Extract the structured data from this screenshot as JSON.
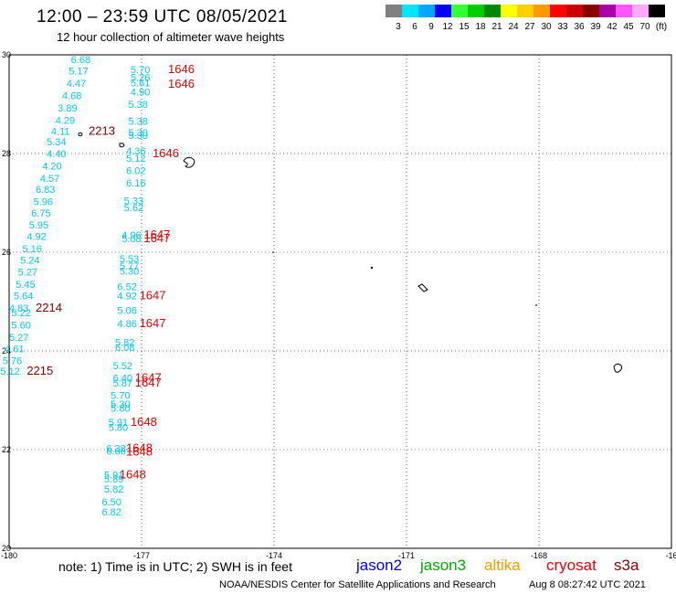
{
  "header": {
    "title": "12:00 – 23:59 UTC 08/05/2021",
    "subtitle": "12 hour collection of altimeter wave heights"
  },
  "color_scale": {
    "unit": "(ft)",
    "levels": [
      {
        "label": "3",
        "color": "#808080"
      },
      {
        "label": "6",
        "color": "#00e5ff"
      },
      {
        "label": "9",
        "color": "#00a8ff"
      },
      {
        "label": "12",
        "color": "#0000ff"
      },
      {
        "label": "15",
        "color": "#33ff33"
      },
      {
        "label": "18",
        "color": "#00cc00"
      },
      {
        "label": "21",
        "color": "#008800"
      },
      {
        "label": "24",
        "color": "#ffff00"
      },
      {
        "label": "27",
        "color": "#ffd000"
      },
      {
        "label": "30",
        "color": "#ff9900"
      },
      {
        "label": "33",
        "color": "#ff0000"
      },
      {
        "label": "36",
        "color": "#cc0000"
      },
      {
        "label": "39",
        "color": "#880000"
      },
      {
        "label": "42",
        "color": "#aa00aa"
      },
      {
        "label": "45",
        "color": "#ff55ff"
      },
      {
        "label": "70",
        "color": "#ffaaff"
      },
      {
        "label": "",
        "color": "#000000"
      }
    ]
  },
  "map": {
    "lon_labels": [
      "-180",
      "-177",
      "-174",
      "-171",
      "-168",
      "-16"
    ],
    "lat_labels": [
      "30",
      "28",
      "26",
      "24",
      "22",
      "20"
    ],
    "colors": {
      "wave": "#00c8f0",
      "time_jason3": "#e00000",
      "time_other": "#800000"
    },
    "wave_labels": [
      {
        "t": "6.68",
        "lon": -178.6,
        "lat": 29.83
      },
      {
        "t": "5.17",
        "lon": -178.65,
        "lat": 29.6
      },
      {
        "t": "4.47",
        "lon": -178.7,
        "lat": 29.35
      },
      {
        "t": "4.68",
        "lon": -178.8,
        "lat": 29.1
      },
      {
        "t": "3.89",
        "lon": -178.9,
        "lat": 28.85
      },
      {
        "t": "4.29",
        "lon": -178.95,
        "lat": 28.6
      },
      {
        "t": "4.11",
        "lon": -179.05,
        "lat": 28.38
      },
      {
        "t": "5.34",
        "lon": -179.15,
        "lat": 28.17
      },
      {
        "t": "4.40",
        "lon": -179.15,
        "lat": 27.93
      },
      {
        "t": "4.20",
        "lon": -179.25,
        "lat": 27.68
      },
      {
        "t": "4.57",
        "lon": -179.3,
        "lat": 27.43
      },
      {
        "t": "6.83",
        "lon": -179.4,
        "lat": 27.2
      },
      {
        "t": "5.96",
        "lon": -179.45,
        "lat": 26.95
      },
      {
        "t": "6.75",
        "lon": -179.5,
        "lat": 26.72
      },
      {
        "t": "5.95",
        "lon": -179.55,
        "lat": 26.48
      },
      {
        "t": "4.92",
        "lon": -179.6,
        "lat": 26.25
      },
      {
        "t": "5.16",
        "lon": -179.7,
        "lat": 26.0
      },
      {
        "t": "5.24",
        "lon": -179.75,
        "lat": 25.77
      },
      {
        "t": "5.27",
        "lon": -179.8,
        "lat": 25.53
      },
      {
        "t": "5.45",
        "lon": -179.85,
        "lat": 25.28
      },
      {
        "t": "5.64",
        "lon": -179.9,
        "lat": 25.05
      },
      {
        "t": "4.83",
        "lon": -180.0,
        "lat": 24.8
      },
      {
        "t": "5.22",
        "lon": -179.95,
        "lat": 24.7
      },
      {
        "t": "5.60",
        "lon": -179.95,
        "lat": 24.45
      },
      {
        "t": "5.27",
        "lon": -180.0,
        "lat": 24.2
      },
      {
        "t": "4.61",
        "lon": -180.1,
        "lat": 23.97
      },
      {
        "t": "5.76",
        "lon": -180.15,
        "lat": 23.73
      },
      {
        "t": "5.12",
        "lon": -180.2,
        "lat": 23.52
      },
      {
        "t": "5.70",
        "lon": -177.25,
        "lat": 29.63
      },
      {
        "t": "5.26",
        "lon": -177.25,
        "lat": 29.47
      },
      {
        "t": "5.61",
        "lon": -177.25,
        "lat": 29.36
      },
      {
        "t": "4.90",
        "lon": -177.25,
        "lat": 29.18
      },
      {
        "t": "5.38",
        "lon": -177.3,
        "lat": 28.93
      },
      {
        "t": "5.38",
        "lon": -177.3,
        "lat": 28.58
      },
      {
        "t": "5.30",
        "lon": -177.3,
        "lat": 28.35
      },
      {
        "t": "5.30",
        "lon": -177.3,
        "lat": 28.3
      },
      {
        "t": "4.36",
        "lon": -177.35,
        "lat": 27.98
      },
      {
        "t": "5.12",
        "lon": -177.35,
        "lat": 27.83
      },
      {
        "t": "6.02",
        "lon": -177.35,
        "lat": 27.58
      },
      {
        "t": "6.16",
        "lon": -177.35,
        "lat": 27.33
      },
      {
        "t": "5.33",
        "lon": -177.4,
        "lat": 26.97
      },
      {
        "t": "5.62",
        "lon": -177.4,
        "lat": 26.83
      },
      {
        "t": "4.96",
        "lon": -177.45,
        "lat": 26.28
      },
      {
        "t": "5.08",
        "lon": -177.45,
        "lat": 26.2
      },
      {
        "t": "5.53",
        "lon": -177.5,
        "lat": 25.8
      },
      {
        "t": "5.77",
        "lon": -177.5,
        "lat": 25.65
      },
      {
        "t": "5.30",
        "lon": -177.5,
        "lat": 25.55
      },
      {
        "t": "6.52",
        "lon": -177.55,
        "lat": 25.23
      },
      {
        "t": "4.92",
        "lon": -177.55,
        "lat": 25.05
      },
      {
        "t": "5.06",
        "lon": -177.55,
        "lat": 24.75
      },
      {
        "t": "4.86",
        "lon": -177.55,
        "lat": 24.48
      },
      {
        "t": "5.82",
        "lon": -177.6,
        "lat": 24.1
      },
      {
        "t": "6.08",
        "lon": -177.6,
        "lat": 24.0
      },
      {
        "t": "5.52",
        "lon": -177.65,
        "lat": 23.63
      },
      {
        "t": "6.40",
        "lon": -177.65,
        "lat": 23.38
      },
      {
        "t": "5.87",
        "lon": -177.65,
        "lat": 23.28
      },
      {
        "t": "5.70",
        "lon": -177.7,
        "lat": 23.03
      },
      {
        "t": "5.30",
        "lon": -177.7,
        "lat": 22.85
      },
      {
        "t": "5.80",
        "lon": -177.7,
        "lat": 22.77
      },
      {
        "t": "5.91",
        "lon": -177.75,
        "lat": 22.48
      },
      {
        "t": "5.80",
        "lon": -177.75,
        "lat": 22.38
      },
      {
        "t": "6.38",
        "lon": -177.8,
        "lat": 21.95
      },
      {
        "t": "6.66",
        "lon": -177.8,
        "lat": 21.9
      },
      {
        "t": "5.91",
        "lon": -177.85,
        "lat": 21.42
      },
      {
        "t": "5.89",
        "lon": -177.85,
        "lat": 21.33
      },
      {
        "t": "5.82",
        "lon": -177.85,
        "lat": 21.13
      },
      {
        "t": "6.50",
        "lon": -177.9,
        "lat": 20.87
      },
      {
        "t": "6.82",
        "lon": -177.9,
        "lat": 20.67
      }
    ],
    "time_labels": [
      {
        "t": "1646",
        "lon": -176.4,
        "lat": 29.63,
        "s": "jason3"
      },
      {
        "t": "1646",
        "lon": -176.4,
        "lat": 29.33,
        "s": "jason3"
      },
      {
        "t": "2213",
        "lon": -178.2,
        "lat": 28.38,
        "s": "other"
      },
      {
        "t": "1646",
        "lon": -176.75,
        "lat": 27.93,
        "s": "jason3"
      },
      {
        "t": "1647",
        "lon": -176.95,
        "lat": 26.28,
        "s": "jason3"
      },
      {
        "t": "1647",
        "lon": -176.95,
        "lat": 26.2,
        "s": "jason3"
      },
      {
        "t": "1647",
        "lon": -177.05,
        "lat": 25.05,
        "s": "jason3"
      },
      {
        "t": "2214",
        "lon": -179.4,
        "lat": 24.8,
        "s": "other"
      },
      {
        "t": "1647",
        "lon": -177.05,
        "lat": 24.48,
        "s": "jason3"
      },
      {
        "t": "2215",
        "lon": -179.6,
        "lat": 23.52,
        "s": "other"
      },
      {
        "t": "1647",
        "lon": -177.15,
        "lat": 23.38,
        "s": "jason3"
      },
      {
        "t": "1647",
        "lon": -177.15,
        "lat": 23.28,
        "s": "jason3"
      },
      {
        "t": "1648",
        "lon": -177.25,
        "lat": 22.48,
        "s": "jason3"
      },
      {
        "t": "1648",
        "lon": -177.35,
        "lat": 21.95,
        "s": "jason3"
      },
      {
        "t": "1648",
        "lon": -177.35,
        "lat": 21.88,
        "s": "jason3"
      },
      {
        "t": "1648",
        "lon": -177.5,
        "lat": 21.42,
        "s": "jason3"
      }
    ]
  },
  "footer": {
    "note": "note:  1) Time is in UTC;  2) SWH is in feet",
    "satellites": [
      {
        "name": "jason2",
        "color": "#0000ee"
      },
      {
        "name": "jason3",
        "color": "#00aa00"
      },
      {
        "name": "altika",
        "color": "#ff9900"
      },
      {
        "name": "cryosat",
        "color": "#ee0000"
      },
      {
        "name": "s3a",
        "color": "#880000"
      }
    ],
    "credit": "NOAA/NESDIS Center for Satellite Applications and Research",
    "generated": "Aug  8 08:27:42 UTC 2021"
  }
}
